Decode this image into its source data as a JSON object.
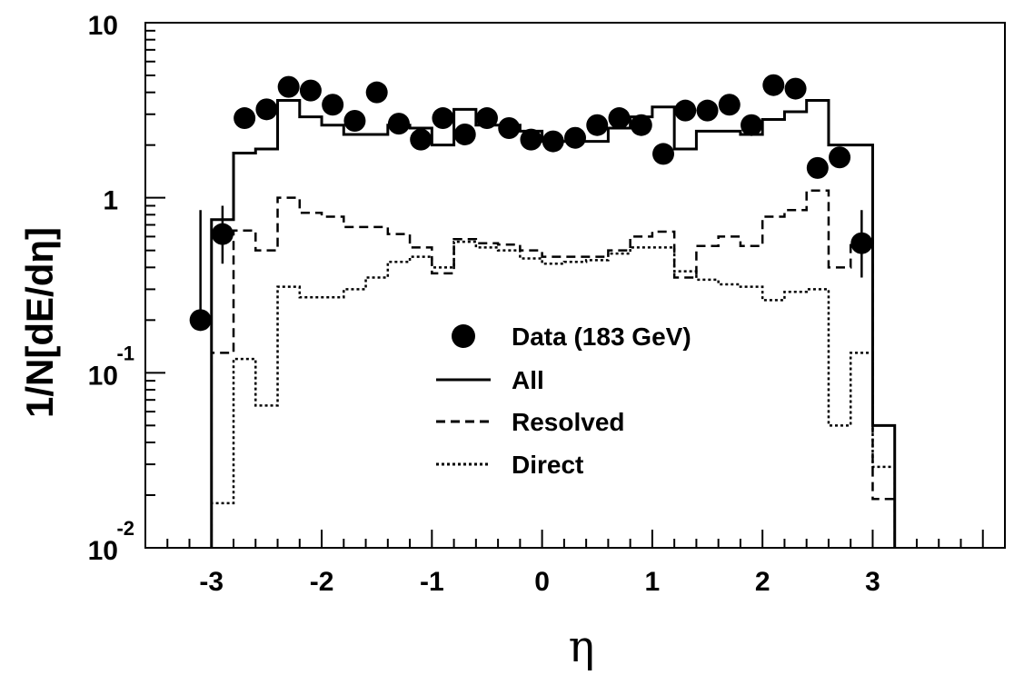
{
  "chart_data": {
    "type": "line",
    "xlabel": "η",
    "ylabel": "1/N[dE/dη]",
    "xlim": [
      -3.6,
      4.2
    ],
    "ylim": [
      0.01,
      10
    ],
    "log_y": true,
    "grid": false,
    "legend_position": "center",
    "x_ticks": [
      {
        "value": -3,
        "label": "-3"
      },
      {
        "value": -2,
        "label": "-2"
      },
      {
        "value": -1,
        "label": "-1"
      },
      {
        "value": 0,
        "label": "0"
      },
      {
        "value": 1,
        "label": "1"
      },
      {
        "value": 2,
        "label": "2"
      },
      {
        "value": 3,
        "label": "3"
      }
    ],
    "y_ticks": [
      {
        "value": 10,
        "base": "10",
        "exp": ""
      },
      {
        "value": 1,
        "base": "1",
        "exp": ""
      },
      {
        "value": 0.1,
        "base": "10",
        "exp": "-1"
      },
      {
        "value": 0.01,
        "base": "10",
        "exp": "-2"
      }
    ],
    "bin_edges": [
      -3.0,
      -2.8,
      -2.6,
      -2.4,
      -2.2,
      -2.0,
      -1.8,
      -1.6,
      -1.4,
      -1.2,
      -1.0,
      -0.8,
      -0.6,
      -0.4,
      -0.2,
      0.0,
      0.2,
      0.4,
      0.6,
      0.8,
      1.0,
      1.2,
      1.4,
      1.6,
      1.8,
      2.0,
      2.2,
      2.4,
      2.6,
      2.8,
      3.0,
      3.2
    ],
    "series": [
      {
        "name": "Data (183 GeV)",
        "kind": "points",
        "x": [
          -3.1,
          -2.9,
          -2.7,
          -2.5,
          -2.3,
          -2.1,
          -1.9,
          -1.7,
          -1.5,
          -1.3,
          -1.1,
          -0.9,
          -0.7,
          -0.5,
          -0.3,
          -0.1,
          0.1,
          0.3,
          0.5,
          0.7,
          0.9,
          1.1,
          1.3,
          1.5,
          1.7,
          1.9,
          2.1,
          2.3,
          2.5,
          2.7,
          2.9
        ],
        "y": [
          0.2,
          0.62,
          2.85,
          3.2,
          4.3,
          4.1,
          3.4,
          2.75,
          4.0,
          2.65,
          2.15,
          2.85,
          2.3,
          2.85,
          2.5,
          2.15,
          2.1,
          2.2,
          2.6,
          2.85,
          2.6,
          1.78,
          3.15,
          3.15,
          3.4,
          2.6,
          4.4,
          4.2,
          1.48,
          1.7,
          0.55
        ],
        "error_low": [
          0.2,
          0.42,
          null,
          null,
          null,
          null,
          null,
          null,
          null,
          null,
          null,
          null,
          null,
          null,
          null,
          null,
          null,
          null,
          null,
          null,
          null,
          null,
          null,
          null,
          null,
          null,
          null,
          null,
          null,
          null,
          0.35
        ],
        "error_high": [
          0.85,
          0.9,
          null,
          null,
          null,
          null,
          null,
          null,
          null,
          null,
          null,
          null,
          null,
          null,
          null,
          null,
          null,
          null,
          null,
          null,
          null,
          null,
          null,
          null,
          null,
          null,
          null,
          null,
          null,
          null,
          0.85
        ]
      },
      {
        "name": "All",
        "kind": "histogram",
        "style": "solid",
        "values": [
          0.75,
          1.8,
          1.9,
          3.6,
          2.9,
          2.6,
          2.3,
          2.3,
          2.6,
          2.5,
          2.0,
          3.2,
          2.6,
          2.6,
          2.4,
          2.1,
          2.1,
          2.1,
          2.5,
          2.9,
          3.3,
          1.9,
          2.4,
          2.4,
          2.3,
          2.8,
          3.1,
          3.6,
          2.0,
          2.0,
          0.05
        ]
      },
      {
        "name": "Resolved",
        "kind": "histogram",
        "style": "dashed",
        "values": [
          0.13,
          0.65,
          0.5,
          1.0,
          0.82,
          0.78,
          0.68,
          0.68,
          0.62,
          0.52,
          0.37,
          0.58,
          0.55,
          0.54,
          0.5,
          0.46,
          0.46,
          0.46,
          0.5,
          0.6,
          0.64,
          0.35,
          0.53,
          0.6,
          0.53,
          0.78,
          0.85,
          1.1,
          0.4,
          0.57,
          0.019
        ]
      },
      {
        "name": "Direct",
        "kind": "histogram",
        "style": "dotted",
        "values": [
          0.018,
          0.12,
          0.065,
          0.31,
          0.27,
          0.27,
          0.3,
          0.35,
          0.43,
          0.46,
          0.4,
          0.56,
          0.52,
          0.5,
          0.45,
          0.42,
          0.43,
          0.44,
          0.48,
          0.52,
          0.52,
          0.38,
          0.34,
          0.32,
          0.31,
          0.26,
          0.29,
          0.3,
          0.05,
          0.13,
          0.029
        ]
      }
    ]
  }
}
